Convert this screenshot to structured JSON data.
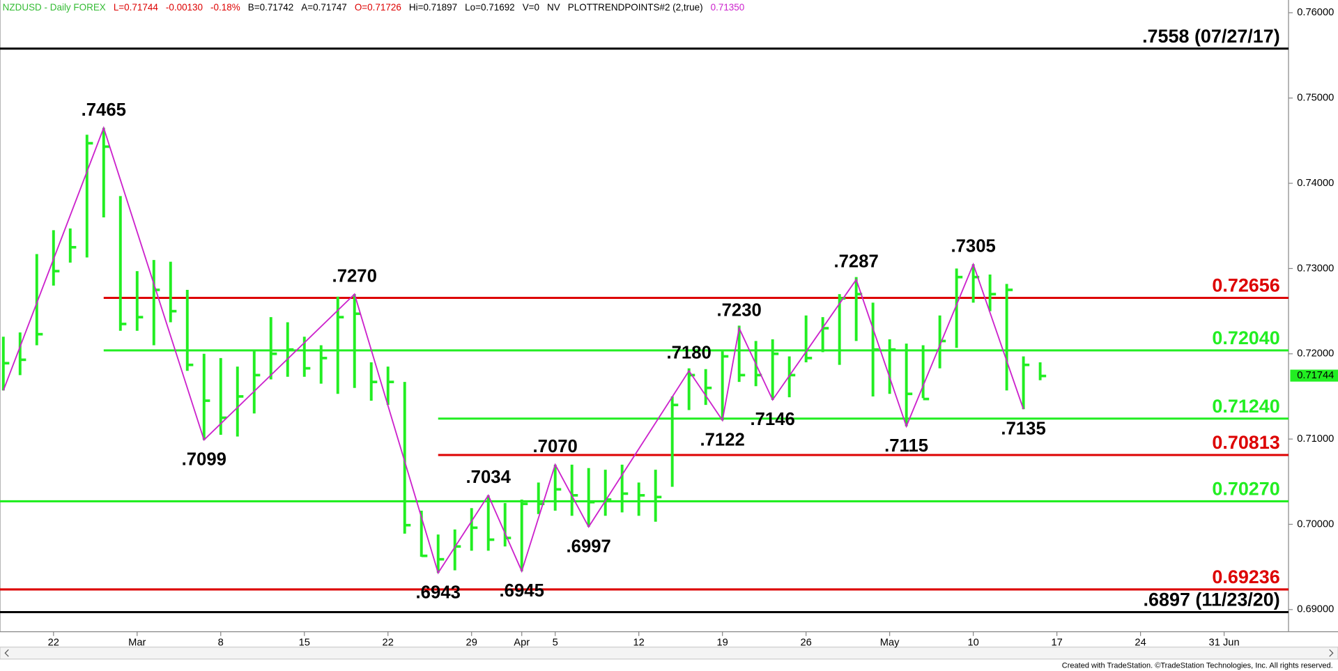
{
  "chart_data": {
    "type": "ohlc",
    "header": [
      {
        "text": "NZDUSD - Daily  FOREX",
        "color": "#33bb33"
      },
      {
        "text": "L=0.71744",
        "color": "#dd0000"
      },
      {
        "text": "-0.00130",
        "color": "#dd0000"
      },
      {
        "text": "-0.18%",
        "color": "#dd0000"
      },
      {
        "text": "B=0.71742",
        "color": "#000000"
      },
      {
        "text": "A=0.71747",
        "color": "#000000"
      },
      {
        "text": "O=0.71726",
        "color": "#dd0000"
      },
      {
        "text": "Hi=0.71897",
        "color": "#000000"
      },
      {
        "text": "Lo=0.71692",
        "color": "#000000"
      },
      {
        "text": "V=0",
        "color": "#000000"
      },
      {
        "text": "NV",
        "color": "#000000"
      },
      {
        "text": "PLOTTRENDPOINTS#2 (2,true)",
        "color": "#000000"
      },
      {
        "text": "0.71350",
        "color": "#cc22cc"
      }
    ],
    "color": "#22ee22",
    "x": [
      -3,
      -2,
      -1,
      0,
      1,
      2,
      3,
      4,
      5,
      6,
      7,
      8,
      9,
      10,
      11,
      12,
      13,
      14,
      15,
      16,
      17,
      18,
      19,
      20,
      21,
      22,
      23,
      24,
      25,
      26,
      27,
      28,
      29,
      30,
      31,
      32,
      33,
      34,
      35,
      36,
      37,
      38,
      39,
      40,
      41,
      42,
      43,
      44,
      45,
      46,
      47,
      48,
      49,
      50,
      51,
      52,
      53,
      54,
      55,
      56,
      57,
      58,
      59
    ],
    "high": [
      0.722,
      0.7225,
      0.7317,
      0.7345,
      0.7347,
      0.7457,
      0.7465,
      0.7385,
      0.7297,
      0.731,
      0.7308,
      0.7275,
      0.72,
      0.7195,
      0.7185,
      0.7205,
      0.7243,
      0.7237,
      0.722,
      0.721,
      0.7267,
      0.727,
      0.719,
      0.7185,
      0.7167,
      0.7016,
      0.6988,
      0.6994,
      0.7019,
      0.7034,
      0.7025,
      0.7029,
      0.7049,
      0.707,
      0.707,
      0.7066,
      0.7064,
      0.707,
      0.7049,
      0.7064,
      0.715,
      0.7183,
      0.7182,
      0.7203,
      0.7233,
      0.7215,
      0.7217,
      0.7197,
      0.7245,
      0.7243,
      0.727,
      0.729,
      0.726,
      0.7217,
      0.7212,
      0.721,
      0.7245,
      0.73,
      0.7305,
      0.7293,
      0.7282,
      0.7197,
      0.719
    ],
    "low": [
      0.7157,
      0.7175,
      0.721,
      0.728,
      0.7307,
      0.7313,
      0.736,
      0.7227,
      0.7227,
      0.721,
      0.7237,
      0.718,
      0.7099,
      0.7105,
      0.7103,
      0.713,
      0.717,
      0.7173,
      0.7173,
      0.7165,
      0.7153,
      0.716,
      0.7145,
      0.714,
      0.6989,
      0.6962,
      0.6943,
      0.6946,
      0.6969,
      0.6969,
      0.6974,
      0.6945,
      0.7012,
      0.7016,
      0.701,
      0.6997,
      0.701,
      0.7014,
      0.701,
      0.7003,
      0.7044,
      0.7134,
      0.714,
      0.7122,
      0.7167,
      0.7162,
      0.7146,
      0.7149,
      0.719,
      0.7202,
      0.7187,
      0.7215,
      0.715,
      0.7153,
      0.7115,
      0.7148,
      0.7183,
      0.7207,
      0.726,
      0.725,
      0.7157,
      0.7135,
      0.7169
    ],
    "close": [
      0.7189,
      0.7193,
      0.7223,
      0.7297,
      0.7325,
      0.7447,
      0.7443,
      0.7235,
      0.7243,
      0.7275,
      0.725,
      0.7187,
      0.7145,
      0.7125,
      0.715,
      0.7175,
      0.72,
      0.7205,
      0.7183,
      0.7195,
      0.7243,
      0.7247,
      0.7167,
      0.7167,
      0.6999,
      0.6963,
      0.6959,
      0.6974,
      0.6996,
      0.6982,
      0.6984,
      0.7024,
      0.7024,
      0.7041,
      0.7034,
      0.7026,
      0.7029,
      0.7036,
      0.7034,
      0.7032,
      0.714,
      0.7175,
      0.716,
      0.7197,
      0.7175,
      0.7175,
      0.72,
      0.7175,
      0.7195,
      0.723,
      0.7265,
      0.727,
      0.7205,
      0.7205,
      0.7153,
      0.7147,
      0.7215,
      0.729,
      0.729,
      0.727,
      0.7275,
      0.7187,
      0.7174
    ],
    "trend": {
      "color": "#cc22cc",
      "x": [
        -3,
        3,
        9,
        18,
        23,
        26,
        28,
        30,
        32,
        38,
        40,
        41,
        43,
        48,
        51,
        55,
        58
      ],
      "values": [
        0.7157,
        0.7465,
        0.7099,
        0.727,
        0.6943,
        0.7034,
        0.6945,
        0.707,
        0.6997,
        0.718,
        0.7122,
        0.723,
        0.7146,
        0.7287,
        0.7115,
        0.7305,
        0.7135
      ],
      "value_labels": [
        null,
        ".7465",
        ".7099",
        ".7270",
        ".6943",
        ".7034",
        ".6945",
        ".7070",
        ".6997",
        ".7180",
        ".7122",
        ".7230",
        ".7146",
        ".7287",
        ".7115",
        ".7305",
        ".7135"
      ]
    },
    "levels": [
      {
        "value": 0.7558,
        "label": ".7558 (07/27/17)",
        "color": "#000000"
      },
      {
        "value": 0.72656,
        "label": "0.72656",
        "color": "#dd0000",
        "x_from": 3
      },
      {
        "value": 0.7204,
        "label": "0.72040",
        "color": "#22ee22",
        "x_from": 3
      },
      {
        "value": 0.7124,
        "label": "0.71240",
        "color": "#22ee22",
        "x_from": 23
      },
      {
        "value": 0.70813,
        "label": "0.70813",
        "color": "#dd0000",
        "x_from": 23
      },
      {
        "value": 0.7027,
        "label": "0.70270",
        "color": "#22ee22"
      },
      {
        "value": 0.69236,
        "label": "0.69236",
        "color": "#dd0000"
      },
      {
        "value": 0.6897,
        "label": ".6897 (11/23/20)",
        "color": "#000000"
      }
    ],
    "last_price": {
      "value": 0.71744,
      "label": "0.71744"
    },
    "xlim": [
      -3.2,
      73.85
    ],
    "xticks": [
      {
        "value": 0,
        "label": "22"
      },
      {
        "value": 5,
        "label": "Mar"
      },
      {
        "value": 10,
        "label": "8"
      },
      {
        "value": 15,
        "label": "15"
      },
      {
        "value": 20,
        "label": "22"
      },
      {
        "value": 25,
        "label": "29"
      },
      {
        "value": 28,
        "label": "Apr"
      },
      {
        "value": 30,
        "label": "5"
      },
      {
        "value": 35,
        "label": "12"
      },
      {
        "value": 40,
        "label": "19"
      },
      {
        "value": 45,
        "label": "26"
      },
      {
        "value": 50,
        "label": "May"
      },
      {
        "value": 55,
        "label": "10"
      },
      {
        "value": 60,
        "label": "17"
      },
      {
        "value": 65,
        "label": "24"
      },
      {
        "value": 70,
        "label": "31 Jun"
      }
    ],
    "ylim": [
      0.6874,
      0.7615
    ],
    "yticks": [
      {
        "value": 0.69,
        "label": "0.69000"
      },
      {
        "value": 0.7,
        "label": "0.70000"
      },
      {
        "value": 0.71,
        "label": "0.71000"
      },
      {
        "value": 0.72,
        "label": "0.72000"
      },
      {
        "value": 0.73,
        "label": "0.73000"
      },
      {
        "value": 0.74,
        "label": "0.74000"
      },
      {
        "value": 0.75,
        "label": "0.75000"
      },
      {
        "value": 0.76,
        "label": "0.76000"
      }
    ],
    "footer": "Created with TradeStation. ©TradeStation Technologies, Inc. All rights reserved."
  }
}
